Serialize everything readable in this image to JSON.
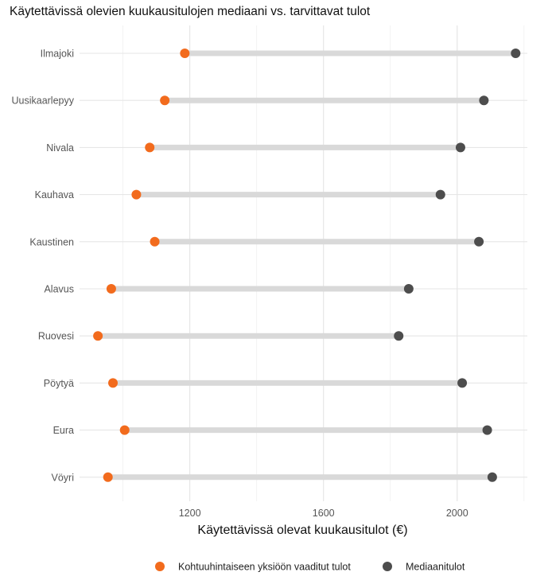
{
  "chart_data": {
    "type": "dumbbell",
    "title": "Käytettävissä olevien kuukausitulojen mediaani vs. tarvittavat tulot",
    "xlabel": "Käytettävissä olevat kuukausitulot (€)",
    "ylabel": "",
    "xlim": [
      870,
      2210
    ],
    "x_ticks": [
      1200,
      1600,
      2000
    ],
    "x_tick_labels": [
      "1200",
      "1600",
      "2000"
    ],
    "grid": "on",
    "legend_position": "bottom",
    "categories": [
      "Ilmajoki",
      "Uusikaarlepyy",
      "Nivala",
      "Kauhava",
      "Kaustinen",
      "Alavus",
      "Ruovesi",
      "Pöytyä",
      "Eura",
      "Vöyri"
    ],
    "series": [
      {
        "name": "Kohtuuhintaiseen yksiöön vaaditut tulot",
        "color": "#f26b1d",
        "values": [
          1185,
          1125,
          1080,
          1040,
          1095,
          965,
          925,
          970,
          1005,
          955
        ]
      },
      {
        "name": "Mediaanitulot",
        "color": "#4d4d4d",
        "values": [
          2175,
          2080,
          2010,
          1950,
          2065,
          1855,
          1825,
          2015,
          2090,
          2105
        ]
      }
    ]
  }
}
